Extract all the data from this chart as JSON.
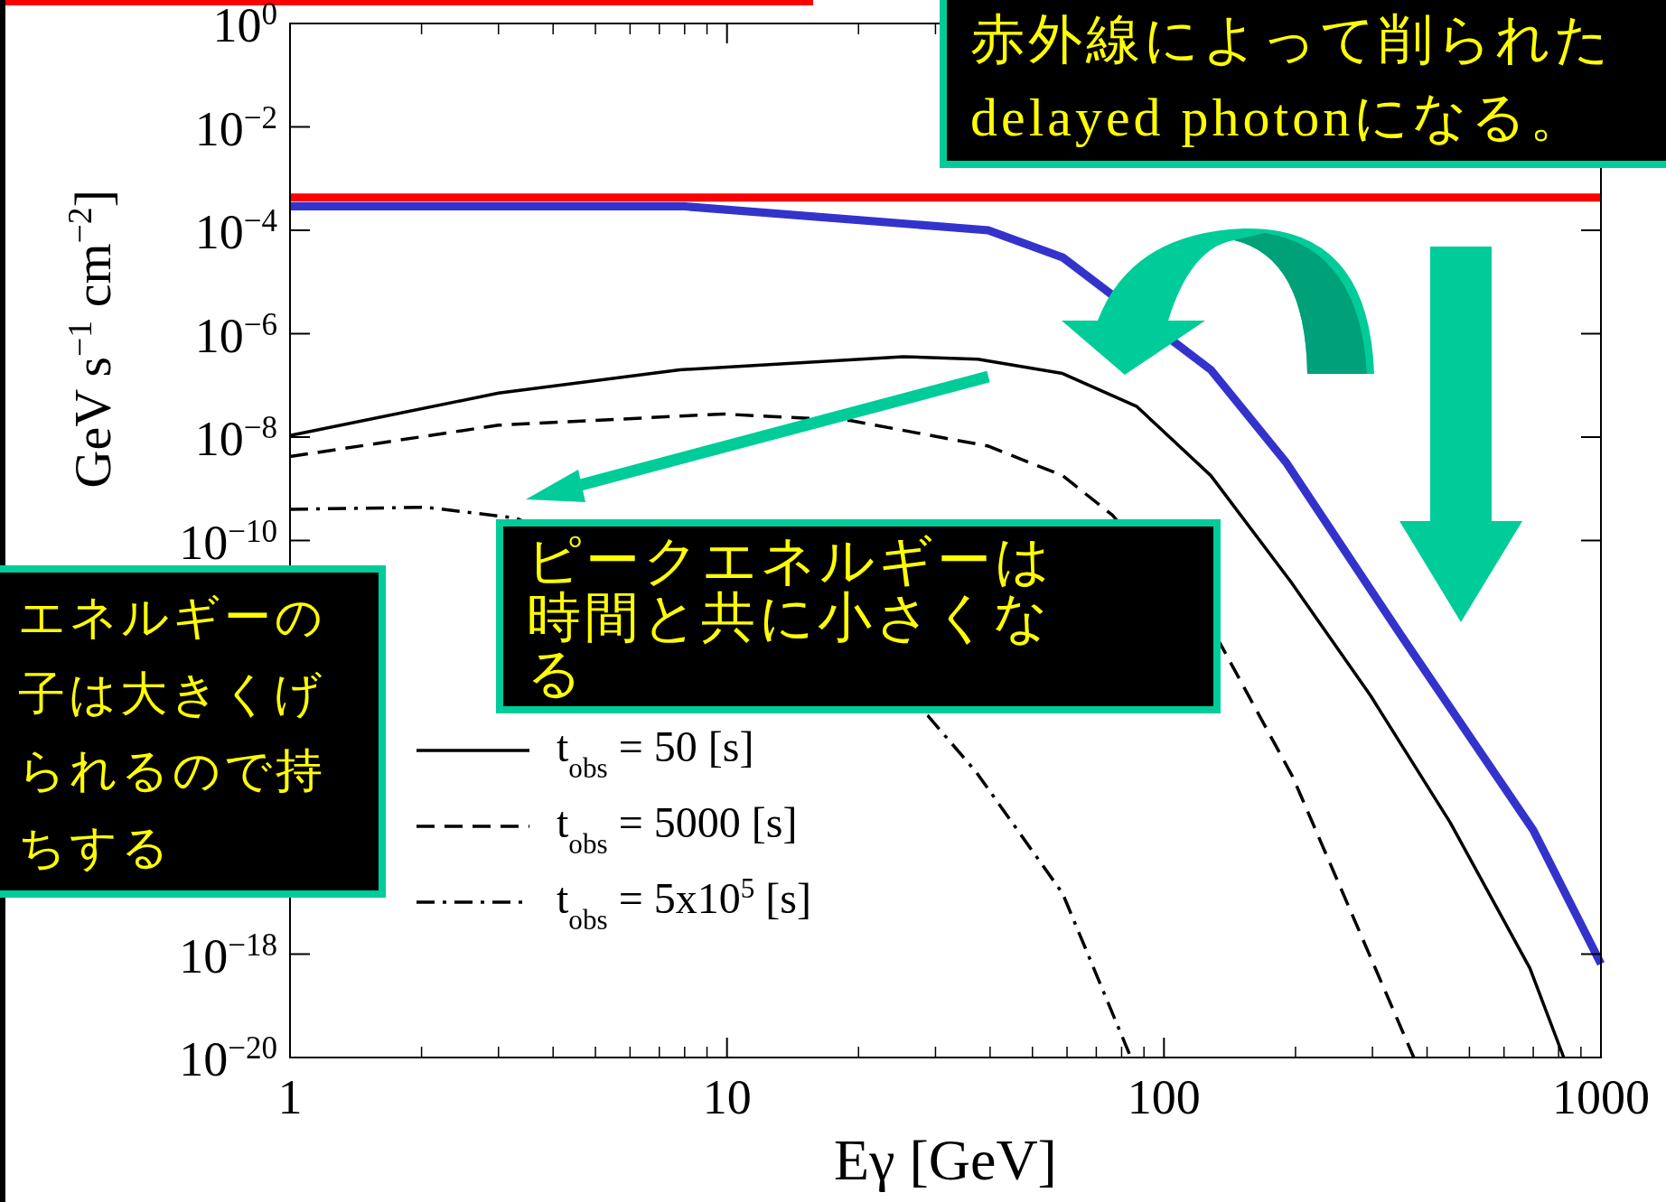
{
  "chart_data": {
    "type": "line",
    "xlabel": "Eγ [GeV]",
    "ylabel": "GeV s$^{−1}$ cm$^{−2}$]",
    "log": "xy",
    "xlim": [
      1,
      1000
    ],
    "ylim": [
      1e-20,
      1
    ],
    "xticks": [
      1,
      10,
      100,
      1000
    ],
    "yticks": [
      {
        "value": 1e-20,
        "label": "10$^{−20}$"
      },
      {
        "value": 1e-18,
        "label": "10$^{−18}$"
      },
      {
        "value": 1e-10,
        "label": "10$^{−10}$"
      },
      {
        "value": 1e-08,
        "label": "10$^{−8}$"
      },
      {
        "value": 1e-06,
        "label": "10$^{−6}$"
      },
      {
        "value": 0.0001,
        "label": "10$^{−4}$"
      },
      {
        "value": 0.01,
        "label": "10$^{−2}$"
      },
      {
        "value": 1,
        "label": "10$^{0}$"
      }
    ],
    "grid": false,
    "legend": "bottom left",
    "series": [
      {
        "color": "#ff0000",
        "line_style": "solid",
        "x": [
          1,
          1000
        ],
        "values": [
          0.00043,
          0.00043
        ]
      },
      {
        "color": "#3333cc",
        "line_style": "solid",
        "x": [
          1,
          8,
          39.6,
          58.6,
          128,
          190,
          351,
          700,
          1000
        ],
        "values": [
          0.00029,
          0.00029,
          0.0001,
          3e-05,
          2e-07,
          3.3e-09,
          1.35e-12,
          2.5e-16,
          6.5e-19
        ]
      },
      {
        "name": "t$_{obs}$ = 50 [s]",
        "color": "#000000",
        "line_style": "solid",
        "x": [
          1,
          3,
          7.8,
          25.3,
          37.5,
          58.6,
          86.7,
          128,
          195,
          297,
          452,
          688,
          822
        ],
        "values": [
          1.07e-08,
          7.1e-08,
          2e-07,
          3.6e-07,
          3.2e-07,
          1.7e-07,
          3.9e-08,
          1.8e-09,
          1.6e-11,
          1e-13,
          3.5e-16,
          5.3e-19,
          1e-20
        ]
      },
      {
        "name": "t$_{obs}$ = 5000 [s]",
        "color": "#000000",
        "line_style": "dashed",
        "x": [
          1,
          3,
          9.77,
          19.1,
          39.6,
          58.6,
          76.2,
          134,
          197,
          373
        ],
        "values": [
          4.2e-09,
          1.7e-08,
          2.8e-08,
          2.1e-08,
          6.7e-09,
          1.8e-09,
          3.1e-10,
          1.07e-12,
          2.7e-15,
          1e-20
        ]
      },
      {
        "name": "t$_{obs}$ = 5x10$^{5}$ [s]",
        "color": "#000000",
        "line_style": "dashdot",
        "x": [
          1,
          2.04,
          3.3,
          28.8,
          37.2,
          58.6,
          84
        ],
        "values": [
          4e-10,
          4.4e-10,
          2.7e-10,
          4.1e-14,
          3.3e-15,
          1.5e-17,
          1e-20
        ]
      }
    ],
    "annotations": [
      "赤外線によって削られた\ndelayed photonになる。",
      "エネルギーの子は大きくげられるので持ちする",
      "ピークエネルギーは時間と共に小さくなる"
    ]
  }
}
